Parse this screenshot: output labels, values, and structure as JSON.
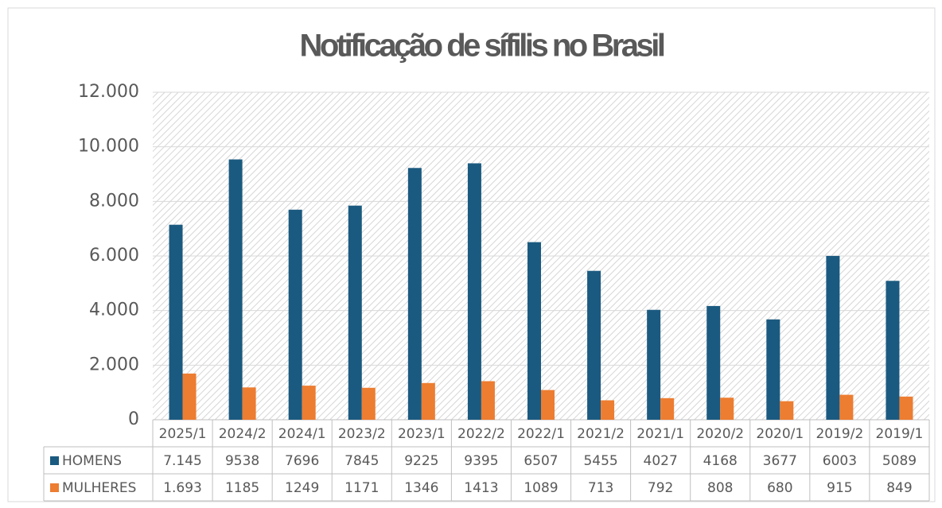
{
  "chart_data": {
    "type": "bar",
    "title": "Notificação de sífilis no Brasil",
    "categories": [
      "2025/1",
      "2024/2",
      "2024/1",
      "2023/2",
      "2023/1",
      "2022/2",
      "2022/1",
      "2021/2",
      "2021/1",
      "2020/2",
      "2020/1",
      "2019/2",
      "2019/1"
    ],
    "series": [
      {
        "name": "HOMENS",
        "color": "#1b5a80",
        "values": [
          7145,
          9538,
          7696,
          7845,
          9225,
          9395,
          6507,
          5455,
          4027,
          4168,
          3677,
          6003,
          5089
        ],
        "value_labels": [
          "7.145",
          "9538",
          "7696",
          "7845",
          "9225",
          "9395",
          "6507",
          "5455",
          "4027",
          "4168",
          "3677",
          "6003",
          "5089"
        ]
      },
      {
        "name": "MULHERES",
        "color": "#ed7d31",
        "values": [
          1693,
          1185,
          1249,
          1171,
          1346,
          1413,
          1089,
          713,
          792,
          808,
          680,
          915,
          849
        ],
        "value_labels": [
          "1.693",
          "1185",
          "1249",
          "1171",
          "1346",
          "1413",
          "1089",
          "713",
          "792",
          "808",
          "680",
          "915",
          "849"
        ]
      }
    ],
    "ylim": [
      0,
      12000
    ],
    "yticks": [
      0,
      {
        "value": 2000,
        "label": "2.000"
      },
      {
        "value": 4000,
        "label": "4.000"
      },
      {
        "value": 6000,
        "label": "6.000"
      },
      {
        "value": 8000,
        "label": "8.000"
      },
      {
        "value": 10000,
        "label": "10.000"
      },
      {
        "value": 12000,
        "label": "12.000"
      }
    ],
    "grid": true
  }
}
